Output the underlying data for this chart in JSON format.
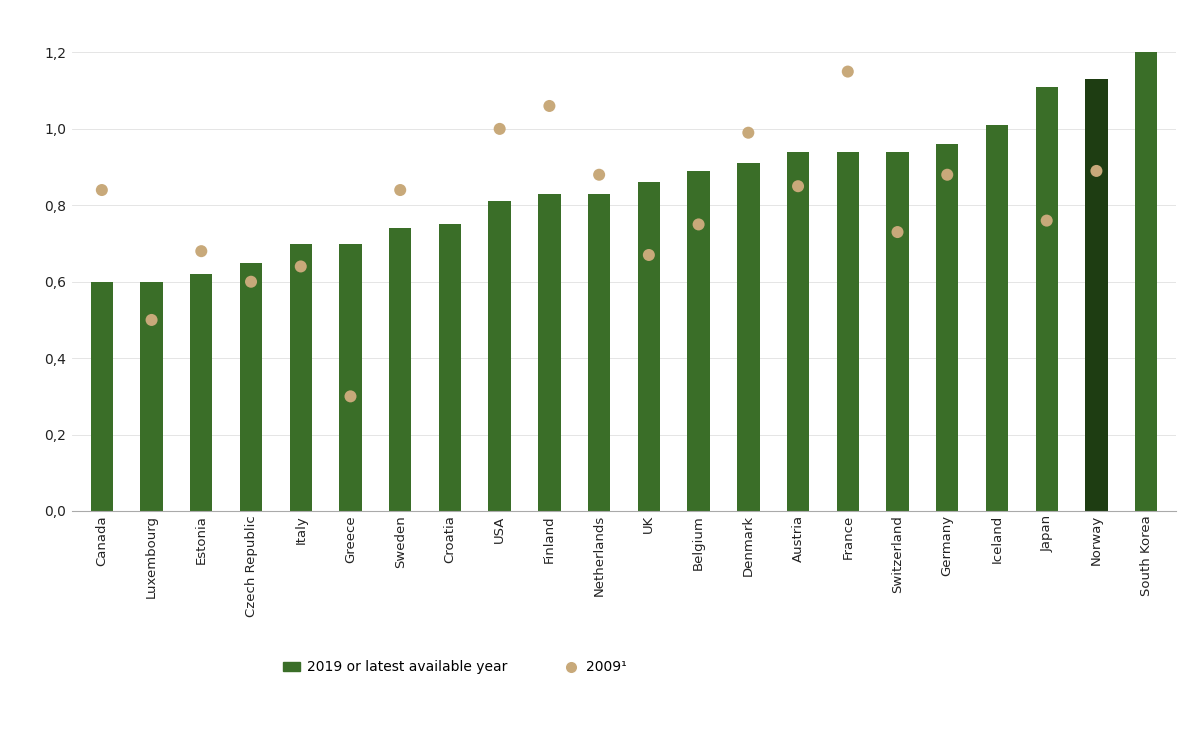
{
  "categories": [
    "Canada",
    "Luxembourg",
    "Estonia",
    "Czech Republic",
    "Italy",
    "Greece",
    "Sweden",
    "Croatia",
    "USA",
    "Finland",
    "Netherlands",
    "UK",
    "Belgium",
    "Denmark",
    "Austria",
    "France",
    "Switzerland",
    "Germany",
    "Iceland",
    "Japan",
    "Norway",
    "South Korea"
  ],
  "bar_values_2019": [
    0.6,
    0.6,
    0.62,
    0.65,
    0.7,
    0.7,
    0.74,
    0.75,
    0.81,
    0.83,
    0.83,
    0.86,
    0.89,
    0.91,
    0.94,
    0.94,
    0.94,
    0.96,
    1.01,
    1.11,
    1.13,
    1.2
  ],
  "dot_values_2009": [
    0.84,
    0.5,
    0.68,
    0.6,
    0.64,
    0.3,
    0.84,
    null,
    1.0,
    1.06,
    0.88,
    0.67,
    0.75,
    0.99,
    0.85,
    1.15,
    0.73,
    0.88,
    null,
    0.76,
    0.89,
    null
  ],
  "bar_color_default": "#3a6e28",
  "bar_color_norway": "#1e3d12",
  "dot_color": "#c8a97a",
  "background_color": "#ffffff",
  "ylim": [
    0,
    1.28
  ],
  "yticks": [
    0.0,
    0.2,
    0.4,
    0.6,
    0.8,
    1.0,
    1.2
  ],
  "ytick_labels": [
    "0,0",
    "0,2",
    "0,4",
    "0,6",
    "0,8",
    "1,0",
    "1,2"
  ],
  "legend_bar_label": "2019 or latest available year",
  "legend_dot_label": "2009¹"
}
